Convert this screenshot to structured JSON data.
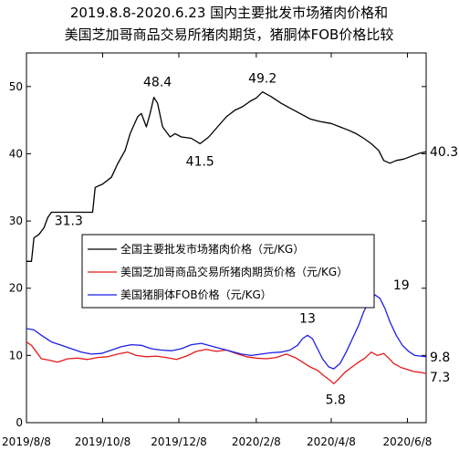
{
  "chart_data": {
    "type": "line",
    "title_lines": [
      "2019.8.8-2020.6.23 国内主要批发市场猪肉价格和",
      "美国芝加哥商品交易所猪肉期货，猪胴体FOB价格比较"
    ],
    "xlabel": "",
    "ylabel": "",
    "x_range": [
      "2019-08-08",
      "2020-06-23"
    ],
    "x_tick_labels": [
      "2019/8/8",
      "2019/10/8",
      "2019/12/8",
      "2020/2/8",
      "2020/4/8",
      "2020/6/8"
    ],
    "x_ticks": [
      "2019-08-08",
      "2019-10-08",
      "2019-12-08",
      "2020-02-08",
      "2020-04-08",
      "2020-06-08"
    ],
    "ylim": [
      0,
      55
    ],
    "y_ticks": [
      0,
      10,
      20,
      30,
      40,
      50
    ],
    "y_tick_labels": [
      "0",
      "10",
      "20",
      "30",
      "40",
      "50"
    ],
    "grid": false,
    "legend_position": "middle",
    "series": [
      {
        "name": "全国主要批发市场猪肉价格（元/KG）",
        "color": "#000000",
        "points": [
          [
            "2019-08-08",
            24.0
          ],
          [
            "2019-08-12",
            24.0
          ],
          [
            "2019-08-14",
            27.5
          ],
          [
            "2019-08-18",
            28.0
          ],
          [
            "2019-08-22",
            29.0
          ],
          [
            "2019-08-25",
            30.5
          ],
          [
            "2019-08-28",
            31.3
          ],
          [
            "2019-09-05",
            31.3
          ],
          [
            "2019-09-15",
            31.3
          ],
          [
            "2019-09-25",
            31.3
          ],
          [
            "2019-09-30",
            31.3
          ],
          [
            "2019-10-02",
            35.0
          ],
          [
            "2019-10-08",
            35.5
          ],
          [
            "2019-10-15",
            36.5
          ],
          [
            "2019-10-20",
            38.5
          ],
          [
            "2019-10-26",
            40.5
          ],
          [
            "2019-10-30",
            43.0
          ],
          [
            "2019-11-05",
            45.5
          ],
          [
            "2019-11-08",
            46.0
          ],
          [
            "2019-11-12",
            44.0
          ],
          [
            "2019-11-15",
            46.0
          ],
          [
            "2019-11-18",
            48.4
          ],
          [
            "2019-11-21",
            47.5
          ],
          [
            "2019-11-25",
            44.0
          ],
          [
            "2019-12-01",
            42.5
          ],
          [
            "2019-12-05",
            43.0
          ],
          [
            "2019-12-10",
            42.5
          ],
          [
            "2019-12-18",
            42.3
          ],
          [
            "2019-12-25",
            41.5
          ],
          [
            "2020-01-01",
            42.5
          ],
          [
            "2020-01-08",
            44.0
          ],
          [
            "2020-01-15",
            45.5
          ],
          [
            "2020-01-22",
            46.5
          ],
          [
            "2020-01-28",
            47.0
          ],
          [
            "2020-02-03",
            47.8
          ],
          [
            "2020-02-08",
            48.3
          ],
          [
            "2020-02-13",
            49.2
          ],
          [
            "2020-02-20",
            48.5
          ],
          [
            "2020-02-28",
            47.5
          ],
          [
            "2020-03-06",
            46.8
          ],
          [
            "2020-03-14",
            46.0
          ],
          [
            "2020-03-22",
            45.2
          ],
          [
            "2020-03-30",
            44.8
          ],
          [
            "2020-04-08",
            44.5
          ],
          [
            "2020-04-15",
            44.0
          ],
          [
            "2020-04-22",
            43.5
          ],
          [
            "2020-04-28",
            43.0
          ],
          [
            "2020-05-04",
            42.3
          ],
          [
            "2020-05-10",
            41.5
          ],
          [
            "2020-05-16",
            40.5
          ],
          [
            "2020-05-20",
            39.0
          ],
          [
            "2020-05-25",
            38.6
          ],
          [
            "2020-05-30",
            39.0
          ],
          [
            "2020-06-05",
            39.2
          ],
          [
            "2020-06-12",
            39.7
          ],
          [
            "2020-06-18",
            40.1
          ],
          [
            "2020-06-23",
            40.3
          ]
        ]
      },
      {
        "name": "美国芝加哥商品交易所猪肉期货价格（元/KG）",
        "color": "#e41a1c",
        "points": [
          [
            "2019-08-08",
            12.0
          ],
          [
            "2019-08-12",
            11.5
          ],
          [
            "2019-08-16",
            10.5
          ],
          [
            "2019-08-20",
            9.5
          ],
          [
            "2019-08-26",
            9.3
          ],
          [
            "2019-09-02",
            9.0
          ],
          [
            "2019-09-10",
            9.5
          ],
          [
            "2019-09-18",
            9.6
          ],
          [
            "2019-09-26",
            9.4
          ],
          [
            "2019-10-04",
            9.7
          ],
          [
            "2019-10-12",
            9.8
          ],
          [
            "2019-10-20",
            10.2
          ],
          [
            "2019-10-28",
            10.5
          ],
          [
            "2019-11-04",
            10.0
          ],
          [
            "2019-11-12",
            9.8
          ],
          [
            "2019-11-20",
            9.9
          ],
          [
            "2019-11-28",
            9.7
          ],
          [
            "2019-12-06",
            9.4
          ],
          [
            "2019-12-14",
            9.9
          ],
          [
            "2019-12-22",
            10.6
          ],
          [
            "2019-12-30",
            10.9
          ],
          [
            "2020-01-07",
            10.6
          ],
          [
            "2020-01-15",
            10.8
          ],
          [
            "2020-01-23",
            10.3
          ],
          [
            "2020-01-31",
            9.8
          ],
          [
            "2020-02-08",
            9.6
          ],
          [
            "2020-02-16",
            9.5
          ],
          [
            "2020-02-24",
            9.7
          ],
          [
            "2020-03-03",
            10.2
          ],
          [
            "2020-03-10",
            9.7
          ],
          [
            "2020-03-16",
            9.0
          ],
          [
            "2020-03-22",
            8.3
          ],
          [
            "2020-03-28",
            7.8
          ],
          [
            "2020-04-02",
            7.0
          ],
          [
            "2020-04-07",
            6.3
          ],
          [
            "2020-04-10",
            5.8
          ],
          [
            "2020-04-14",
            6.5
          ],
          [
            "2020-04-19",
            7.5
          ],
          [
            "2020-04-24",
            8.2
          ],
          [
            "2020-04-30",
            9.0
          ],
          [
            "2020-05-05",
            9.6
          ],
          [
            "2020-05-10",
            10.5
          ],
          [
            "2020-05-15",
            10.0
          ],
          [
            "2020-05-20",
            10.3
          ],
          [
            "2020-05-24",
            9.6
          ],
          [
            "2020-05-28",
            8.8
          ],
          [
            "2020-06-03",
            8.2
          ],
          [
            "2020-06-08",
            7.9
          ],
          [
            "2020-06-13",
            7.6
          ],
          [
            "2020-06-18",
            7.5
          ],
          [
            "2020-06-23",
            7.3
          ]
        ]
      },
      {
        "name": "美国猪胴体FOB价格（元/KG）",
        "color": "#1f1fe6",
        "points": [
          [
            "2019-08-08",
            14.0
          ],
          [
            "2019-08-14",
            13.8
          ],
          [
            "2019-08-20",
            13.0
          ],
          [
            "2019-08-28",
            12.0
          ],
          [
            "2019-09-05",
            11.5
          ],
          [
            "2019-09-13",
            11.0
          ],
          [
            "2019-09-21",
            10.5
          ],
          [
            "2019-09-29",
            10.2
          ],
          [
            "2019-10-07",
            10.3
          ],
          [
            "2019-10-15",
            10.8
          ],
          [
            "2019-10-23",
            11.3
          ],
          [
            "2019-10-31",
            11.6
          ],
          [
            "2019-11-08",
            11.5
          ],
          [
            "2019-11-16",
            11.0
          ],
          [
            "2019-11-24",
            10.8
          ],
          [
            "2019-12-02",
            10.7
          ],
          [
            "2019-12-10",
            11.0
          ],
          [
            "2019-12-18",
            11.6
          ],
          [
            "2019-12-26",
            11.8
          ],
          [
            "2020-01-03",
            11.4
          ],
          [
            "2020-01-11",
            11.0
          ],
          [
            "2020-01-19",
            10.6
          ],
          [
            "2020-01-27",
            10.2
          ],
          [
            "2020-02-04",
            10.0
          ],
          [
            "2020-02-12",
            10.2
          ],
          [
            "2020-02-20",
            10.4
          ],
          [
            "2020-02-28",
            10.5
          ],
          [
            "2020-03-06",
            10.8
          ],
          [
            "2020-03-12",
            11.5
          ],
          [
            "2020-03-16",
            12.5
          ],
          [
            "2020-03-20",
            13.0
          ],
          [
            "2020-03-24",
            12.5
          ],
          [
            "2020-03-28",
            11.0
          ],
          [
            "2020-04-01",
            9.5
          ],
          [
            "2020-04-06",
            8.3
          ],
          [
            "2020-04-10",
            8.0
          ],
          [
            "2020-04-15",
            8.8
          ],
          [
            "2020-04-20",
            10.5
          ],
          [
            "2020-04-25",
            12.5
          ],
          [
            "2020-04-30",
            14.5
          ],
          [
            "2020-05-04",
            16.5
          ],
          [
            "2020-05-08",
            18.0
          ],
          [
            "2020-05-13",
            19.0
          ],
          [
            "2020-05-17",
            18.5
          ],
          [
            "2020-05-21",
            17.0
          ],
          [
            "2020-05-25",
            15.0
          ],
          [
            "2020-05-30",
            13.0
          ],
          [
            "2020-06-04",
            11.5
          ],
          [
            "2020-06-09",
            10.6
          ],
          [
            "2020-06-14",
            10.0
          ],
          [
            "2020-06-19",
            9.9
          ],
          [
            "2020-06-23",
            9.8
          ]
        ]
      }
    ],
    "annotations": [
      {
        "text": "48.4",
        "x": "2019-11-18",
        "y": 48.4
      },
      {
        "text": "49.2",
        "x": "2020-02-13",
        "y": 49.2
      },
      {
        "text": "41.5",
        "x": "2019-12-25",
        "y": 41.5
      },
      {
        "text": "31.3",
        "x": "2019-09-05",
        "y": 31.3
      },
      {
        "text": "40.3",
        "x": "2020-06-23",
        "y": 40.3
      },
      {
        "text": "13",
        "x": "2020-03-20",
        "y": 13
      },
      {
        "text": "19",
        "x": "2020-05-13",
        "y": 19
      },
      {
        "text": "5.8",
        "x": "2020-04-10",
        "y": 5.8
      },
      {
        "text": "9.8",
        "x": "2020-06-23",
        "y": 9.8
      },
      {
        "text": "7.3",
        "x": "2020-06-23",
        "y": 7.3
      }
    ]
  }
}
